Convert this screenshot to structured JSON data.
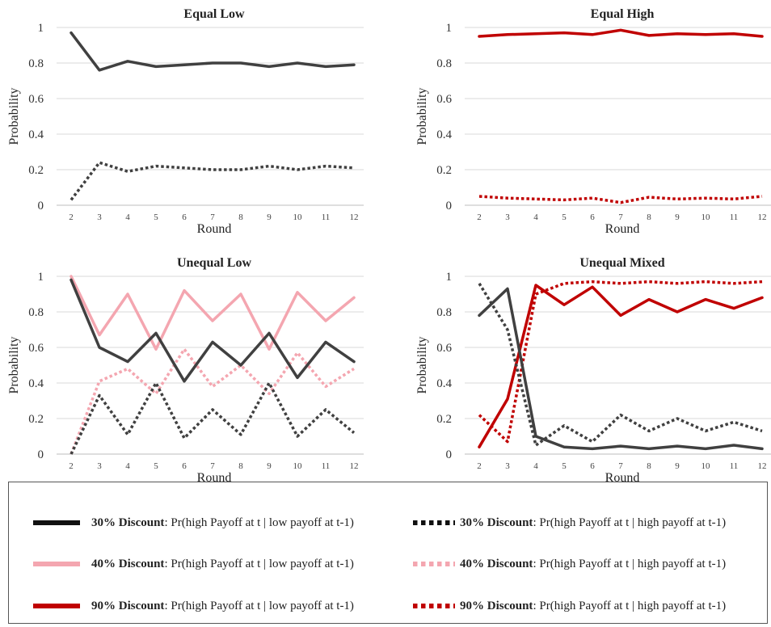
{
  "chart_data": [
    {
      "type": "line",
      "title": "Equal Low",
      "xlabel": "Round",
      "ylabel": "Probability",
      "categories": [
        "2",
        "3",
        "4",
        "5",
        "6",
        "7",
        "8",
        "9",
        "10",
        "11",
        "12"
      ],
      "ylim": [
        0,
        1
      ],
      "yticks": [
        "0",
        "0.2",
        "0.4",
        "0.6",
        "0.8",
        "1"
      ],
      "grid": true,
      "series": [
        {
          "name": "30% Discount: Pr(high Payoff at t | low payoff at t-1)",
          "color": "#404040",
          "style": "solid",
          "values": [
            0.97,
            0.76,
            0.81,
            0.78,
            0.79,
            0.8,
            0.8,
            0.78,
            0.8,
            0.78,
            0.79
          ]
        },
        {
          "name": "30% Discount: Pr(high Payoff at t | high payoff at t-1)",
          "color": "#404040",
          "style": "dotted",
          "values": [
            0.03,
            0.24,
            0.19,
            0.22,
            0.21,
            0.2,
            0.2,
            0.22,
            0.2,
            0.22,
            0.21
          ]
        }
      ]
    },
    {
      "type": "line",
      "title": "Equal High",
      "xlabel": "Round",
      "ylabel": "Probability",
      "categories": [
        "2",
        "3",
        "4",
        "5",
        "6",
        "7",
        "8",
        "9",
        "10",
        "11",
        "12"
      ],
      "ylim": [
        0,
        1
      ],
      "yticks": [
        "0",
        "0.2",
        "0.4",
        "0.6",
        "0.8",
        "1"
      ],
      "grid": true,
      "series": [
        {
          "name": "90% Discount: Pr(high Payoff at t | low payoff at t-1)",
          "color": "#c00000",
          "style": "solid",
          "values": [
            0.95,
            0.96,
            0.965,
            0.97,
            0.96,
            0.985,
            0.955,
            0.965,
            0.96,
            0.965,
            0.95
          ]
        },
        {
          "name": "90% Discount: Pr(high Payoff at t | high payoff at t-1)",
          "color": "#c00000",
          "style": "dotted",
          "values": [
            0.05,
            0.04,
            0.035,
            0.03,
            0.04,
            0.015,
            0.045,
            0.035,
            0.04,
            0.035,
            0.05
          ]
        }
      ]
    },
    {
      "type": "line",
      "title": "Unequal Low",
      "xlabel": "Round",
      "ylabel": "Probability",
      "categories": [
        "2",
        "3",
        "4",
        "5",
        "6",
        "7",
        "8",
        "9",
        "10",
        "11",
        "12"
      ],
      "ylim": [
        0,
        1
      ],
      "yticks": [
        "0",
        "0.2",
        "0.4",
        "0.6",
        "0.8",
        "1"
      ],
      "grid": true,
      "series": [
        {
          "name": "40% Discount: Pr(high Payoff at t | low payoff at t-1)",
          "color": "#f4a6b0",
          "style": "solid",
          "values": [
            1.0,
            0.67,
            0.9,
            0.59,
            0.92,
            0.75,
            0.9,
            0.59,
            0.91,
            0.75,
            0.88
          ]
        },
        {
          "name": "40% Discount: Pr(high Payoff at t | high payoff at t-1)",
          "color": "#f4a6b0",
          "style": "dotted",
          "values": [
            0.0,
            0.41,
            0.48,
            0.34,
            0.59,
            0.38,
            0.5,
            0.34,
            0.57,
            0.38,
            0.48
          ]
        },
        {
          "name": "30% Discount: Pr(high Payoff at t | low payoff at t-1)",
          "color": "#404040",
          "style": "solid",
          "values": [
            0.98,
            0.6,
            0.52,
            0.68,
            0.41,
            0.63,
            0.5,
            0.68,
            0.43,
            0.63,
            0.52
          ]
        },
        {
          "name": "30% Discount: Pr(high Payoff at t | high payoff at t-1)",
          "color": "#404040",
          "style": "dotted",
          "values": [
            0.0,
            0.33,
            0.11,
            0.4,
            0.09,
            0.25,
            0.11,
            0.4,
            0.1,
            0.25,
            0.12
          ]
        }
      ]
    },
    {
      "type": "line",
      "title": "Unequal Mixed",
      "xlabel": "Round",
      "ylabel": "Probability",
      "categories": [
        "2",
        "3",
        "4",
        "5",
        "6",
        "7",
        "8",
        "9",
        "10",
        "11",
        "12"
      ],
      "ylim": [
        0,
        1
      ],
      "yticks": [
        "0",
        "0.2",
        "0.4",
        "0.6",
        "0.8",
        "1"
      ],
      "grid": true,
      "series": [
        {
          "name": "90% Discount: Pr(high Payoff at t | low payoff at t-1)",
          "color": "#c00000",
          "style": "solid",
          "values": [
            0.04,
            0.31,
            0.95,
            0.84,
            0.94,
            0.78,
            0.87,
            0.8,
            0.87,
            0.82,
            0.88
          ]
        },
        {
          "name": "90% Discount: Pr(high Payoff at t | high payoff at t-1)",
          "color": "#c00000",
          "style": "dotted",
          "values": [
            0.22,
            0.07,
            0.9,
            0.96,
            0.97,
            0.96,
            0.97,
            0.96,
            0.97,
            0.96,
            0.97
          ]
        },
        {
          "name": "30% Discount: Pr(high Payoff at t | low payoff at t-1)",
          "color": "#404040",
          "style": "solid",
          "values": [
            0.78,
            0.93,
            0.1,
            0.04,
            0.03,
            0.045,
            0.03,
            0.045,
            0.03,
            0.05,
            0.03
          ]
        },
        {
          "name": "30% Discount: Pr(high Payoff at t | high payoff at t-1)",
          "color": "#404040",
          "style": "dotted",
          "values": [
            0.96,
            0.7,
            0.05,
            0.16,
            0.07,
            0.22,
            0.13,
            0.2,
            0.13,
            0.18,
            0.13
          ]
        }
      ]
    }
  ],
  "legend": {
    "items": [
      {
        "bold": "30% Discount",
        "rest": ": Pr(high Payoff at t | low payoff at t-1)",
        "color": "#111111",
        "style": "solid"
      },
      {
        "bold": "30% Discount",
        "rest": ": Pr(high Payoff at t | high payoff at t-1)",
        "color": "#111111",
        "style": "dotted"
      },
      {
        "bold": "40% Discount",
        "rest": ": Pr(high Payoff at t | low payoff at t-1)",
        "color": "#f4a6b0",
        "style": "solid"
      },
      {
        "bold": "40% Discount",
        "rest": ": Pr(high Payoff at t | high payoff at t-1)",
        "color": "#f4a6b0",
        "style": "dotted"
      },
      {
        "bold": "90% Discount",
        "rest": ": Pr(high Payoff at t | low payoff at t-1)",
        "color": "#c00000",
        "style": "solid"
      },
      {
        "bold": "90% Discount",
        "rest": ": Pr(high Payoff at t | high payoff at t-1)",
        "color": "#c00000",
        "style": "dotted"
      }
    ]
  }
}
